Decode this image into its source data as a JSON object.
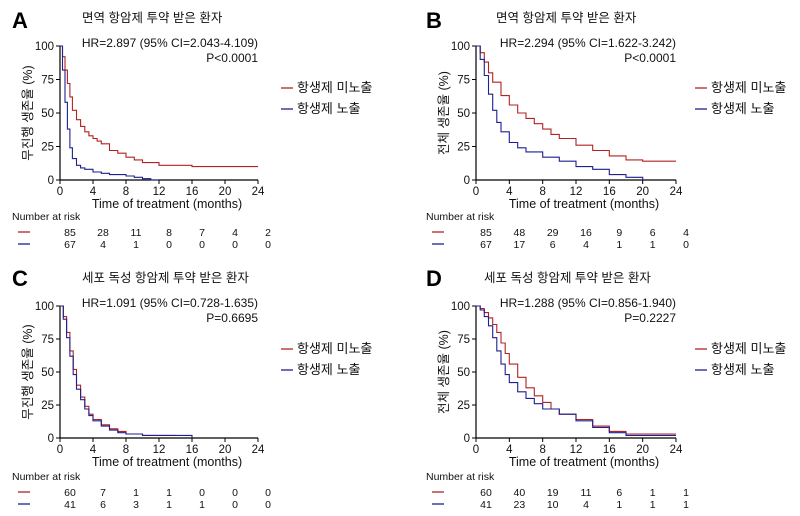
{
  "colors": {
    "unexposed": "#b22222",
    "exposed": "#1f1f8f",
    "axis": "#000000"
  },
  "chart_data": [
    {
      "panel": "A",
      "type": "line",
      "title": "면역 항암제 투약 받은 환자",
      "stat_hr": "HR=2.897 (95% CI=2.043-4.109)",
      "stat_p": "P<0.0001",
      "xlabel": "Time of treatment (months)",
      "ylabel": "무진행 생존율 (%)",
      "xlim": [
        0,
        24
      ],
      "ylim": [
        0,
        100
      ],
      "xticks": [
        0,
        4,
        8,
        12,
        16,
        20,
        24
      ],
      "yticks": [
        0,
        25,
        50,
        75,
        100
      ],
      "series": [
        {
          "name": "항생제 미노출",
          "key": "unexposed",
          "x": [
            0,
            0.3,
            0.6,
            0.9,
            1.2,
            1.5,
            2,
            2.5,
            3,
            3.5,
            4,
            4.5,
            5,
            6,
            7,
            8,
            9,
            10,
            12,
            14,
            16,
            20,
            24
          ],
          "y": [
            100,
            92,
            82,
            72,
            62,
            52,
            45,
            40,
            36,
            33,
            31,
            29,
            27,
            22,
            20,
            17,
            15,
            13,
            11,
            11,
            10,
            10,
            10
          ]
        },
        {
          "name": "항생제 노출",
          "key": "exposed",
          "x": [
            0,
            0.3,
            0.6,
            0.9,
            1.2,
            1.5,
            2,
            2.5,
            3,
            4,
            5,
            6,
            8,
            9,
            10,
            11,
            12
          ],
          "y": [
            100,
            82,
            58,
            38,
            24,
            16,
            11,
            9,
            8,
            6,
            5,
            4,
            3,
            2,
            1,
            0,
            0
          ]
        }
      ],
      "risk": {
        "header": "Number at risk",
        "unexposed": [
          85,
          28,
          11,
          8,
          7,
          4,
          2
        ],
        "exposed": [
          67,
          4,
          1,
          0,
          0,
          0,
          0
        ]
      }
    },
    {
      "panel": "B",
      "type": "line",
      "title": "면역 항암제 투약 받은 환자",
      "stat_hr": "HR=2.294 (95% CI=1.622-3.242)",
      "stat_p": "P<0.0001",
      "xlabel": "Time of treatment (months)",
      "ylabel": "전체 생존율 (%)",
      "xlim": [
        0,
        24
      ],
      "ylim": [
        0,
        100
      ],
      "xticks": [
        0,
        4,
        8,
        12,
        16,
        20,
        24
      ],
      "yticks": [
        0,
        25,
        50,
        75,
        100
      ],
      "series": [
        {
          "name": "항생제 미노출",
          "key": "unexposed",
          "x": [
            0,
            0.5,
            1,
            1.5,
            2,
            3,
            4,
            5,
            6,
            7,
            8,
            9,
            10,
            12,
            14,
            16,
            18,
            20,
            24
          ],
          "y": [
            100,
            95,
            88,
            80,
            73,
            63,
            56,
            50,
            46,
            42,
            38,
            34,
            31,
            26,
            22,
            18,
            15,
            14,
            14
          ]
        },
        {
          "name": "항생제 노출",
          "key": "exposed",
          "x": [
            0,
            0.5,
            1,
            1.5,
            2,
            2.5,
            3,
            4,
            5,
            6,
            8,
            10,
            12,
            14,
            16,
            18,
            20
          ],
          "y": [
            100,
            90,
            78,
            64,
            52,
            43,
            36,
            28,
            24,
            21,
            17,
            14,
            10,
            8,
            4,
            2,
            0
          ]
        }
      ],
      "risk": {
        "header": "Number at risk",
        "unexposed": [
          85,
          48,
          29,
          16,
          9,
          6,
          4
        ],
        "exposed": [
          67,
          17,
          6,
          4,
          1,
          1,
          0
        ]
      }
    },
    {
      "panel": "C",
      "type": "line",
      "title": "세포 독성 항암제 투약 받은 환자",
      "stat_hr": "HR=1.091 (95% CI=0.728-1.635)",
      "stat_p": "P=0.6695",
      "xlabel": "Time of treatment (months)",
      "ylabel": "무진행 생존율 (%)",
      "xlim": [
        0,
        24
      ],
      "ylim": [
        0,
        100
      ],
      "xticks": [
        0,
        4,
        8,
        12,
        16,
        20,
        24
      ],
      "yticks": [
        0,
        25,
        50,
        75,
        100
      ],
      "series": [
        {
          "name": "항생제 미노출",
          "key": "unexposed",
          "x": [
            0,
            0.4,
            0.8,
            1.2,
            1.6,
            2,
            2.5,
            3,
            3.5,
            4,
            5,
            6,
            7,
            8,
            10,
            12,
            14
          ],
          "y": [
            100,
            92,
            80,
            66,
            52,
            40,
            31,
            24,
            18,
            14,
            10,
            7,
            5,
            3,
            2,
            2,
            2
          ]
        },
        {
          "name": "항생제 노출",
          "key": "exposed",
          "x": [
            0,
            0.4,
            0.8,
            1.2,
            1.6,
            2,
            2.5,
            3,
            3.5,
            4,
            5,
            6,
            7,
            8,
            10,
            12,
            14,
            16
          ],
          "y": [
            100,
            90,
            76,
            62,
            48,
            37,
            29,
            22,
            17,
            13,
            9,
            6,
            4,
            3,
            2,
            2,
            2,
            0
          ]
        }
      ],
      "risk": {
        "header": "Number at risk",
        "unexposed": [
          60,
          7,
          1,
          1,
          0,
          0,
          0
        ],
        "exposed": [
          41,
          6,
          3,
          1,
          1,
          0,
          0
        ]
      }
    },
    {
      "panel": "D",
      "type": "line",
      "title": "세포 독성 항암제 투약 받은 환자",
      "stat_hr": "HR=1.288 (95% CI=0.856-1.940)",
      "stat_p": "P=0.2227",
      "xlabel": "Time of treatment (months)",
      "ylabel": "전체 생존율 (%)",
      "xlim": [
        0,
        24
      ],
      "ylim": [
        0,
        100
      ],
      "xticks": [
        0,
        4,
        8,
        12,
        16,
        20,
        24
      ],
      "yticks": [
        0,
        25,
        50,
        75,
        100
      ],
      "series": [
        {
          "name": "항생제 미노출",
          "key": "unexposed",
          "x": [
            0,
            0.5,
            1,
            1.5,
            2,
            2.5,
            3,
            3.5,
            4,
            5,
            6,
            7,
            8,
            9,
            10,
            12,
            14,
            16,
            18,
            20,
            24
          ],
          "y": [
            100,
            98,
            95,
            91,
            86,
            80,
            72,
            64,
            56,
            46,
            38,
            32,
            27,
            22,
            18,
            14,
            9,
            5,
            3,
            3,
            3
          ]
        },
        {
          "name": "항생제 노출",
          "key": "exposed",
          "x": [
            0,
            0.5,
            1,
            1.5,
            2,
            2.5,
            3,
            3.5,
            4,
            5,
            6,
            7,
            8,
            10,
            12,
            14,
            16,
            18,
            20,
            24
          ],
          "y": [
            100,
            97,
            92,
            85,
            76,
            66,
            56,
            48,
            42,
            35,
            30,
            26,
            22,
            18,
            13,
            8,
            4,
            2,
            2,
            2
          ]
        }
      ],
      "risk": {
        "header": "Number at risk",
        "unexposed": [
          60,
          40,
          19,
          11,
          6,
          1,
          1
        ],
        "exposed": [
          41,
          23,
          10,
          4,
          1,
          1,
          1
        ]
      }
    }
  ]
}
